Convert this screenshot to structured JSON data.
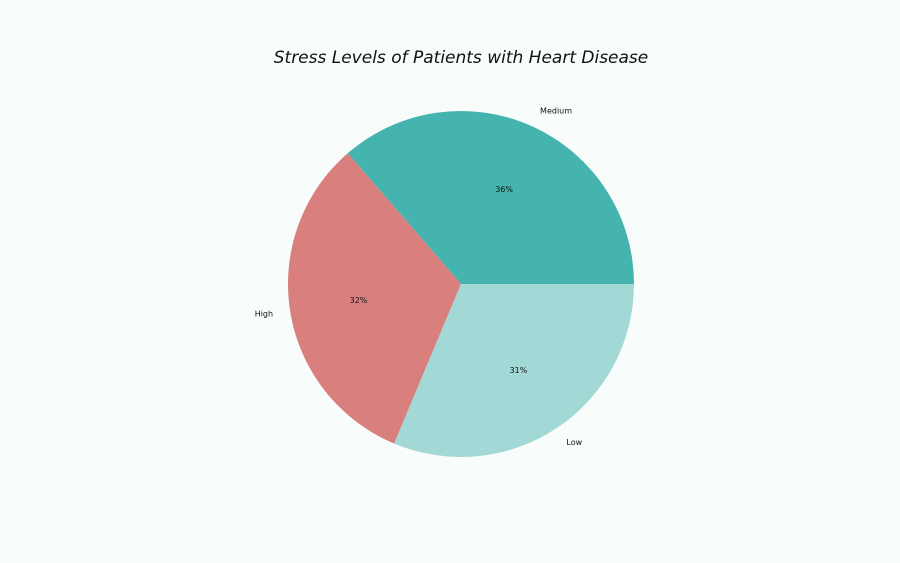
{
  "chart_data": {
    "type": "pie",
    "title": "Stress Levels of Patients with Heart Disease",
    "slices": [
      {
        "label": "Medium",
        "value": 36,
        "pct_label": "36%",
        "color": "#45b3ae"
      },
      {
        "label": "High",
        "value": 32,
        "pct_label": "32%",
        "color": "#d9807e"
      },
      {
        "label": "Low",
        "value": 31,
        "pct_label": "31%",
        "color": "#a2d9d6"
      }
    ],
    "start_angle_deg": 0,
    "direction": "counterclockwise",
    "legend": "none"
  }
}
